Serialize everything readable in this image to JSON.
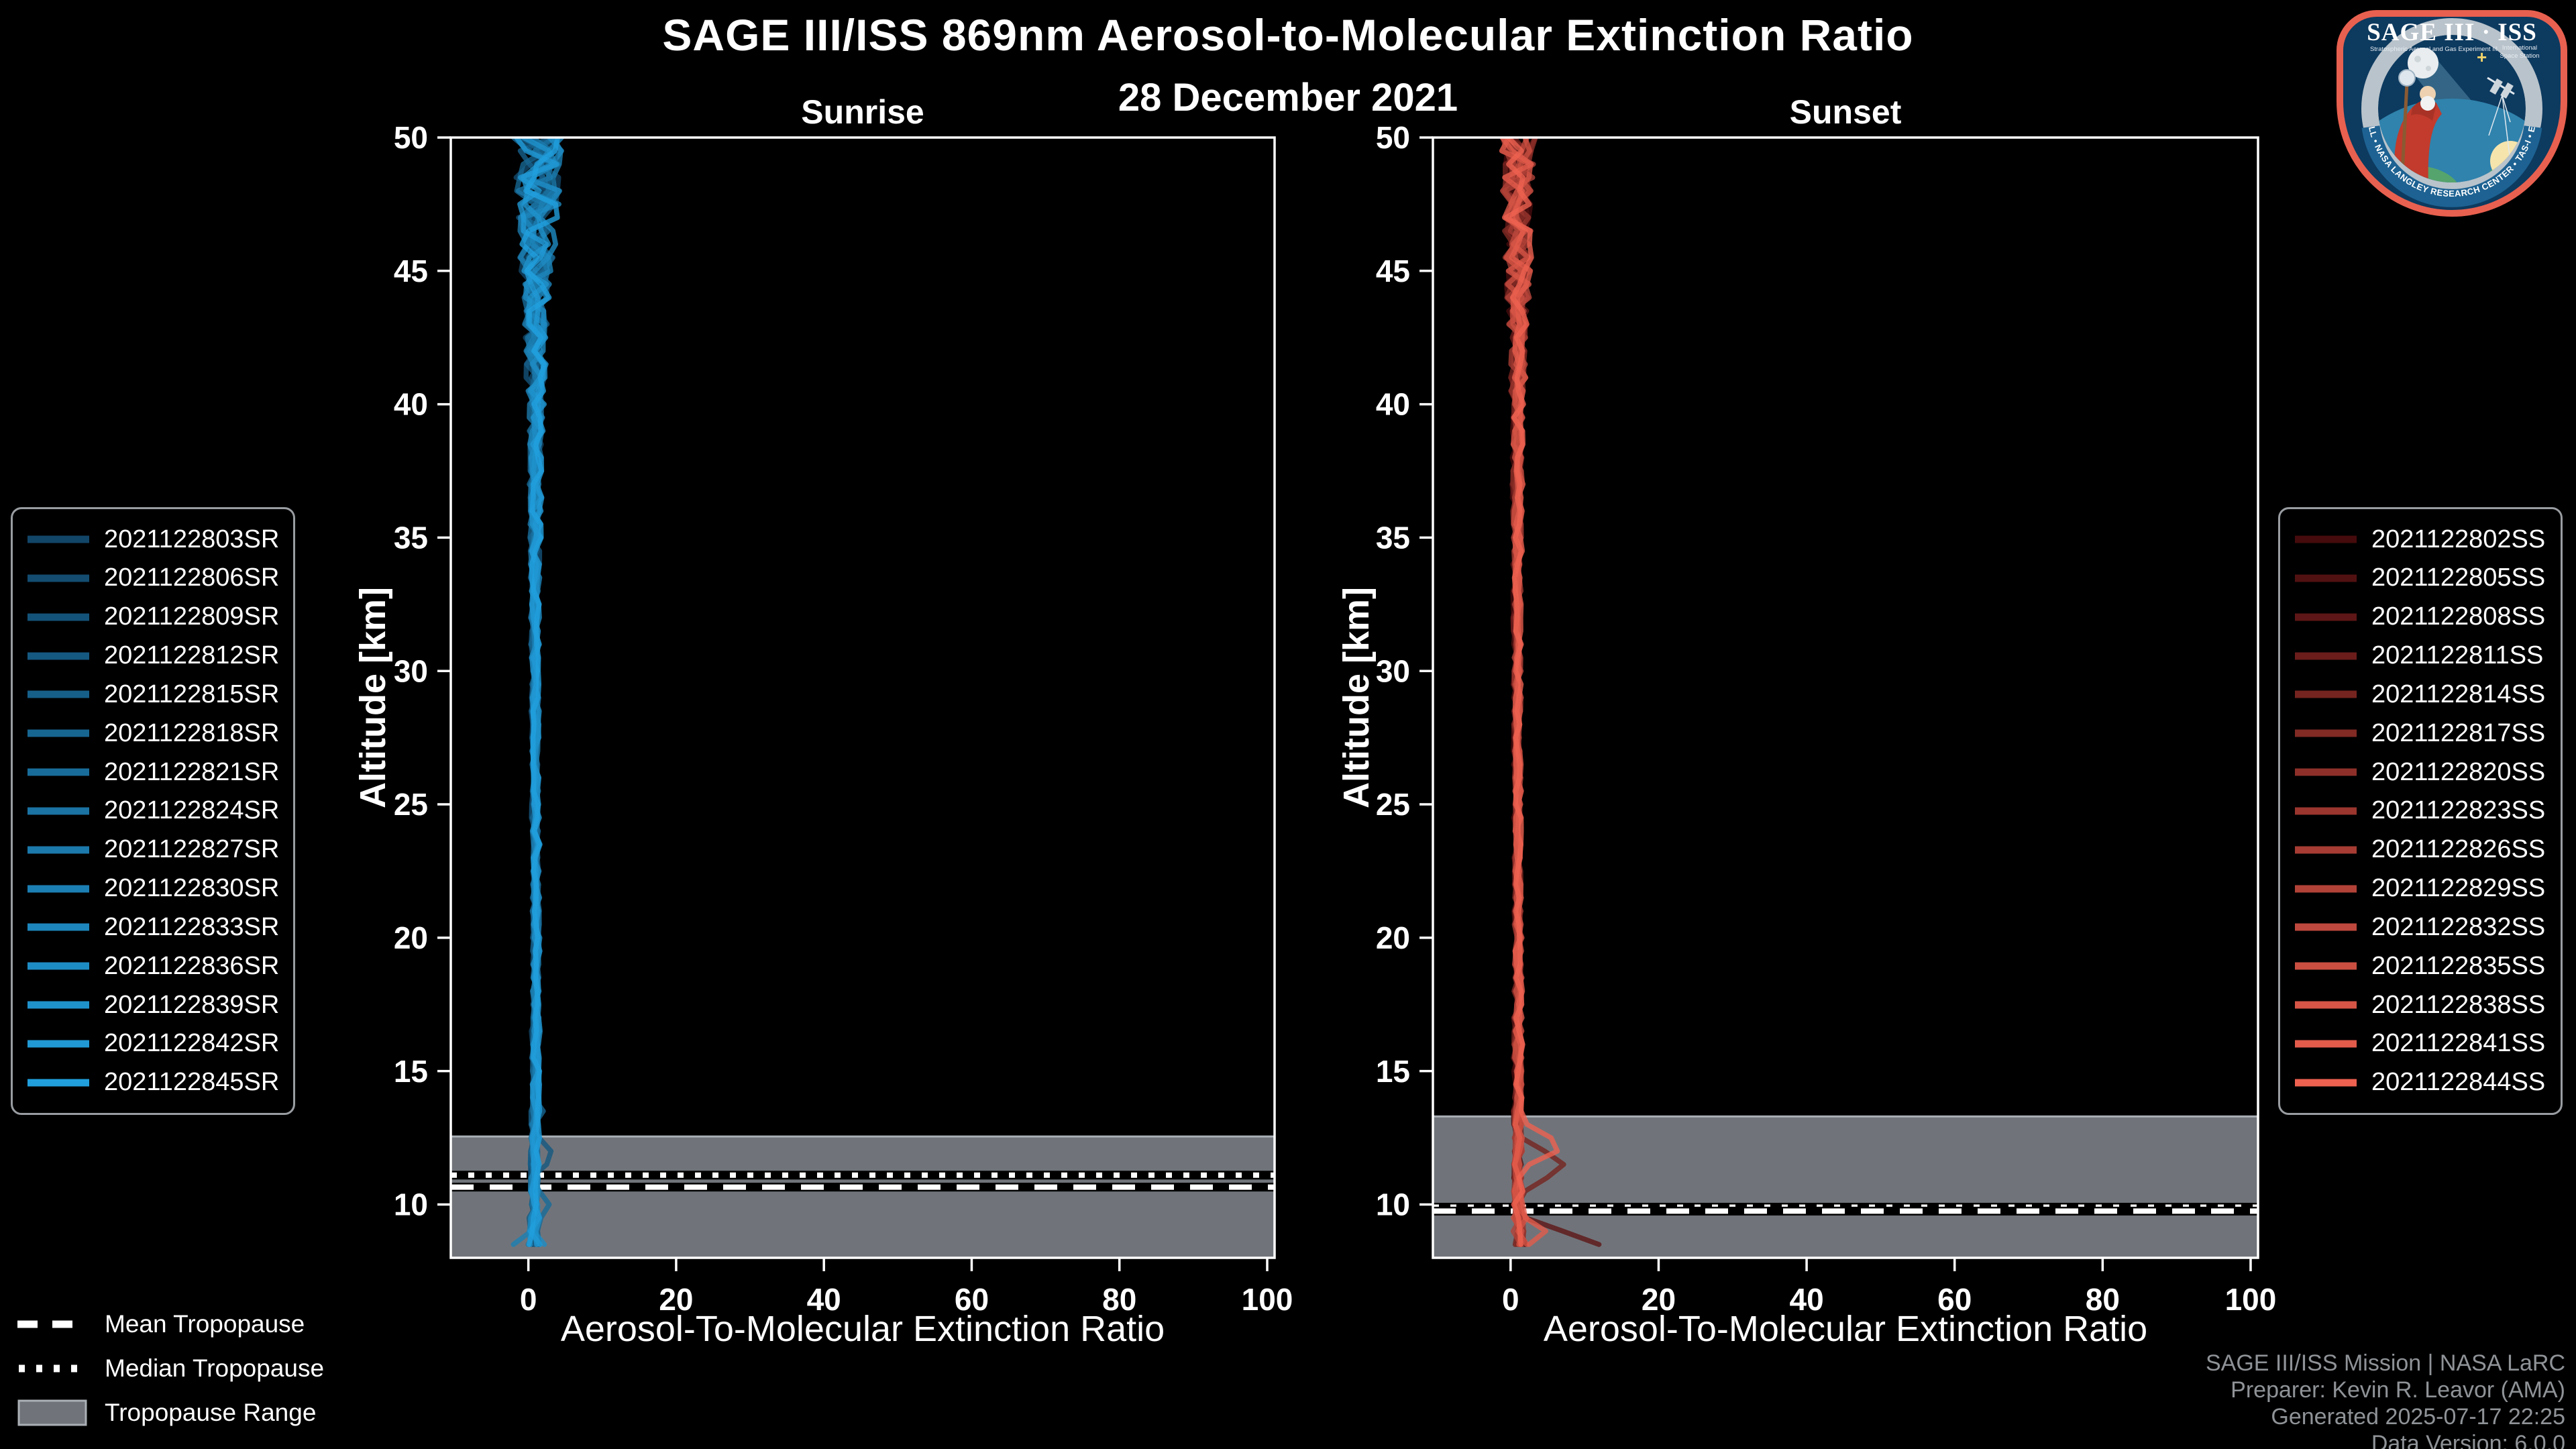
{
  "header": {
    "title": "SAGE III/ISS 869nm Aerosol-to-Molecular Extinction Ratio",
    "date": "28 December 2021"
  },
  "footer": {
    "lines": [
      "SAGE III/ISS Mission | NASA LaRC",
      "Preparer: Kevin R. Leavor (AMA)",
      "Generated 2025-07-17 22:25",
      "Data Version: 6.0.0"
    ]
  },
  "tropopause_legend": [
    {
      "key": "mean",
      "label": "Mean Tropopause"
    },
    {
      "key": "median",
      "label": "Median Tropopause"
    },
    {
      "key": "range",
      "label": "Tropopause Range"
    }
  ],
  "colors": {
    "background": "#000000",
    "axis": "#ffffff",
    "tropopause_band": "#70747a",
    "tropopause_band_edge": "#aab0b6",
    "tropopause_line_white": "#ffffff",
    "tropopause_line_base": "#000000",
    "footer_text": "#8f9397"
  },
  "logo": {
    "title": "SAGE III · ISS",
    "subtitle_left": "Stratospheric Aerosol and Gas Experiment III",
    "subtitle_right_1": "International",
    "subtitle_right_2": "Space Station",
    "ring_text": "BALL • NASA LANGLEY RESEARCH CENTER • TAS-I • ESA",
    "border_color": "#e8604f",
    "bg_color": "#0d3a5f",
    "ring_color": "#b9c3cb"
  },
  "chart_data": [
    {
      "id": "sunrise",
      "type": "line",
      "title": "Sunrise",
      "xlabel": "Aerosol-To-Molecular Extinction Ratio",
      "ylabel": "Altitude [km]",
      "xlim": [
        -10.5,
        101
      ],
      "ylim": [
        8,
        50
      ],
      "x_ticks": [
        0,
        20,
        40,
        60,
        80,
        100
      ],
      "y_ticks": [
        10,
        15,
        20,
        25,
        30,
        35,
        40,
        45,
        50
      ],
      "grid": false,
      "legend_position": "outside-left",
      "line_color_start": "#124668",
      "line_color_end": "#219fdd",
      "line_opacity": 0.8,
      "tropopause": {
        "mean_km": 10.65,
        "median_km": 11.1,
        "range_top_km": 12.55,
        "range_bottom_km": 8.0
      },
      "series": [
        {
          "label": "2021122803SR"
        },
        {
          "label": "2021122806SR"
        },
        {
          "label": "2021122809SR"
        },
        {
          "label": "2021122812SR"
        },
        {
          "label": "2021122815SR"
        },
        {
          "label": "2021122818SR"
        },
        {
          "label": "2021122821SR"
        },
        {
          "label": "2021122824SR"
        },
        {
          "label": "2021122827SR"
        },
        {
          "label": "2021122830SR"
        },
        {
          "label": "2021122833SR"
        },
        {
          "label": "2021122836SR"
        },
        {
          "label": "2021122839SR"
        },
        {
          "label": "2021122842SR"
        },
        {
          "label": "2021122845SR"
        }
      ],
      "alt_step_km": 0.5,
      "seed": 7,
      "profile_centers": [
        [
          50,
          1.2,
          3.3
        ],
        [
          48,
          1.3,
          3.0
        ],
        [
          45,
          1.1,
          2.2
        ],
        [
          42,
          1.0,
          1.4
        ],
        [
          38,
          1.0,
          0.9
        ],
        [
          32,
          0.9,
          0.55
        ],
        [
          26,
          0.95,
          0.45
        ],
        [
          20,
          1.05,
          0.5
        ],
        [
          15,
          1.0,
          0.5
        ],
        [
          12,
          0.85,
          0.55
        ],
        [
          10,
          0.8,
          0.6
        ],
        [
          8.5,
          0.7,
          0.9
        ],
        [
          8,
          0.6,
          1.0
        ]
      ],
      "features": [
        {
          "series": 3,
          "alt_km": 11.85,
          "peak": 2.4,
          "halfwidth_km": 0.7
        },
        {
          "series": 5,
          "alt_km": 13.4,
          "peak": 1.8,
          "halfwidth_km": 0.5
        },
        {
          "series": 6,
          "alt_km": 9.95,
          "peak": 2.6,
          "halfwidth_km": 0.6
        },
        {
          "series": 9,
          "alt_km": 8.55,
          "peak": -3.0,
          "halfwidth_km": 0.55
        },
        {
          "series": 11,
          "alt_km": 8.45,
          "peak": 2.2,
          "halfwidth_km": 0.5
        }
      ]
    },
    {
      "id": "sunset",
      "type": "line",
      "title": "Sunset",
      "xlabel": "Aerosol-To-Molecular Extinction Ratio",
      "ylabel": "Altitude [km]",
      "xlim": [
        -10.5,
        101
      ],
      "ylim": [
        8,
        50
      ],
      "x_ticks": [
        0,
        20,
        40,
        60,
        80,
        100
      ],
      "y_ticks": [
        10,
        15,
        20,
        25,
        30,
        35,
        40,
        45,
        50
      ],
      "grid": false,
      "legend_position": "outside-right",
      "line_color_start": "#460b0c",
      "line_color_end": "#ee6150",
      "line_opacity": 0.8,
      "tropopause": {
        "mean_km": 9.75,
        "median_km": 9.9,
        "range_top_km": 13.3,
        "range_bottom_km": 8.0
      },
      "series": [
        {
          "label": "2021122802SS"
        },
        {
          "label": "2021122805SS"
        },
        {
          "label": "2021122808SS"
        },
        {
          "label": "2021122811SS"
        },
        {
          "label": "2021122814SS"
        },
        {
          "label": "2021122817SS"
        },
        {
          "label": "2021122820SS"
        },
        {
          "label": "2021122823SS"
        },
        {
          "label": "2021122826SS"
        },
        {
          "label": "2021122829SS"
        },
        {
          "label": "2021122832SS"
        },
        {
          "label": "2021122835SS"
        },
        {
          "label": "2021122838SS"
        },
        {
          "label": "2021122841SS"
        },
        {
          "label": "2021122844SS"
        }
      ],
      "alt_step_km": 0.5,
      "seed": 13,
      "profile_centers": [
        [
          50,
          1.0,
          2.4
        ],
        [
          48,
          1.1,
          2.2
        ],
        [
          45,
          1.0,
          1.7
        ],
        [
          42,
          1.0,
          1.1
        ],
        [
          38,
          0.95,
          0.7
        ],
        [
          32,
          0.9,
          0.5
        ],
        [
          26,
          0.95,
          0.45
        ],
        [
          20,
          1.0,
          0.5
        ],
        [
          15,
          1.0,
          0.55
        ],
        [
          12,
          1.0,
          0.6
        ],
        [
          10,
          1.0,
          0.7
        ],
        [
          8.5,
          1.2,
          1.0
        ],
        [
          8,
          1.3,
          1.2
        ]
      ],
      "features": [
        {
          "series": 14,
          "alt_km": 12.25,
          "peak": 6.8,
          "halfwidth_km": 0.85
        },
        {
          "series": 4,
          "alt_km": 11.5,
          "peak": 6.5,
          "halfwidth_km": 1.1
        },
        {
          "series": 2,
          "alt_km": 8.45,
          "peak": 11.5,
          "halfwidth_km": 1.2
        },
        {
          "series": 13,
          "alt_km": 8.85,
          "peak": 3.8,
          "halfwidth_km": 0.7
        },
        {
          "series": 12,
          "alt_km": 9.35,
          "peak": 2.2,
          "halfwidth_km": 0.5
        }
      ]
    }
  ]
}
